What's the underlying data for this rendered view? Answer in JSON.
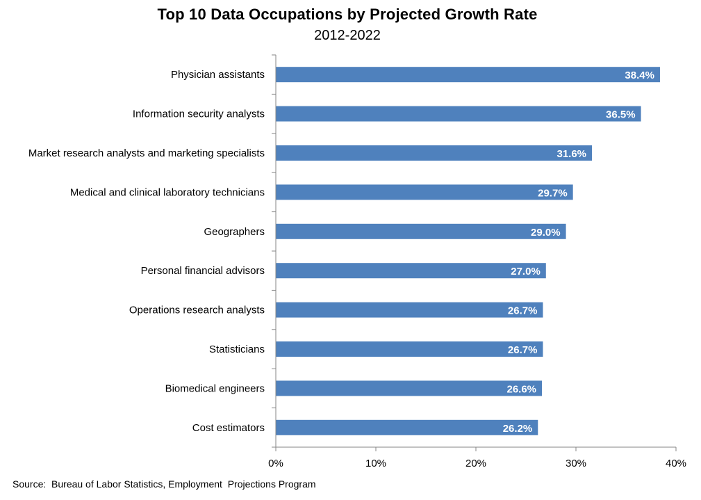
{
  "chart_data": {
    "type": "bar",
    "orientation": "horizontal",
    "title": "Top 10 Data Occupations by Projected Growth Rate",
    "subtitle": "2012-2022",
    "categories": [
      "Physician assistants",
      "Information security analysts",
      "Market research analysts and marketing specialists",
      "Medical and clinical laboratory technicians",
      "Geographers",
      "Personal financial advisors",
      "Operations research analysts",
      "Statisticians",
      "Biomedical engineers",
      "Cost estimators"
    ],
    "values": [
      38.4,
      36.5,
      31.6,
      29.7,
      29.0,
      27.0,
      26.7,
      26.7,
      26.6,
      26.2
    ],
    "data_labels": [
      "38.4%",
      "36.5%",
      "31.6%",
      "29.7%",
      "29.0%",
      "27.0%",
      "26.7%",
      "26.7%",
      "26.6%",
      "26.2%"
    ],
    "xlim": [
      0,
      40
    ],
    "x_ticks": [
      0,
      10,
      20,
      30,
      40
    ],
    "x_tick_labels": [
      "0%",
      "10%",
      "20%",
      "30%",
      "40%"
    ],
    "xlabel": "",
    "ylabel": "",
    "grid": false,
    "legend": "none",
    "bar_color": "#4F81BD",
    "axis_color": "#868686"
  },
  "footer": {
    "source": "Source:  Bureau of Labor Statistics, Employment  Projections Program"
  }
}
